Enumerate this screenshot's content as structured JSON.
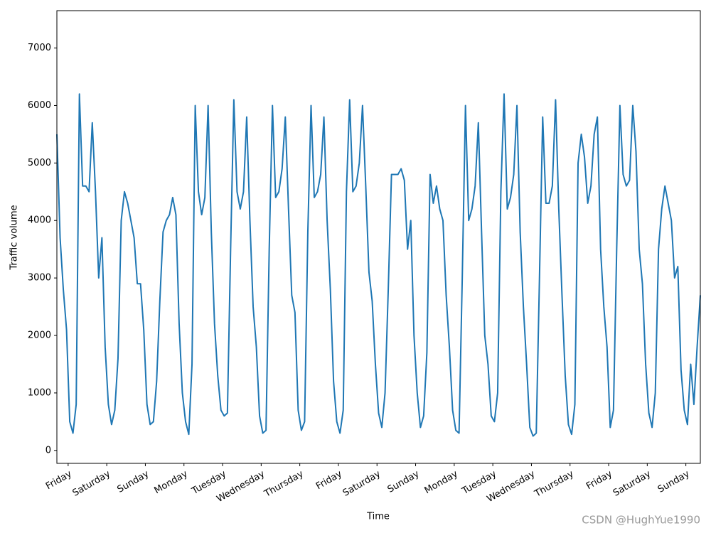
{
  "chart_data": {
    "type": "line",
    "xlabel": "Time",
    "ylabel": "Traffic volume",
    "watermark": "CSDN @HughYue1990",
    "color": "#1f77b4",
    "x": [
      0,
      2,
      4,
      6,
      8,
      10,
      12,
      14,
      16,
      18,
      20,
      22,
      24,
      26,
      28,
      30,
      32,
      34,
      36,
      38,
      40,
      42,
      44,
      46,
      48,
      50,
      52,
      54,
      56,
      58,
      60,
      62,
      64,
      66,
      68,
      70,
      72,
      74,
      76,
      78,
      80,
      82,
      84,
      86,
      88,
      90,
      92,
      94,
      96,
      98,
      100,
      102,
      104,
      106,
      108,
      110,
      112,
      114,
      116,
      118,
      120,
      122,
      124,
      126,
      128,
      130,
      132,
      134,
      136,
      138,
      140,
      142,
      144,
      146,
      148,
      150,
      152,
      154,
      156,
      158,
      160,
      162,
      164,
      166,
      168,
      170,
      172,
      174,
      176,
      178,
      180,
      182,
      184,
      186,
      188,
      190,
      192,
      194,
      196,
      198,
      200,
      202,
      204,
      206,
      208,
      210,
      212,
      214,
      216,
      218,
      220,
      222,
      224,
      226,
      228,
      230,
      232,
      234,
      236,
      238,
      240,
      242,
      244,
      246,
      248,
      250,
      252,
      254,
      256,
      258,
      260,
      262,
      264,
      266,
      268,
      270,
      272,
      274,
      276,
      278,
      280,
      282,
      284,
      286,
      288,
      290,
      292,
      294,
      296,
      298,
      300,
      302,
      304,
      306,
      308,
      310,
      312,
      314,
      316,
      318,
      320,
      322,
      324,
      326,
      328,
      330,
      332,
      334,
      336,
      338,
      340,
      342,
      344,
      346,
      348,
      350,
      352,
      354,
      356,
      358,
      360,
      362,
      364,
      366,
      368,
      370,
      372,
      374,
      376,
      378,
      380,
      382,
      384,
      386,
      388,
      390,
      392,
      394,
      396,
      398,
      400
    ],
    "values": [
      5500,
      3700,
      2800,
      2100,
      500,
      300,
      800,
      6200,
      4600,
      4600,
      4500,
      5700,
      4500,
      3000,
      3700,
      1800,
      800,
      450,
      700,
      1600,
      4000,
      4500,
      4300,
      4000,
      3700,
      2900,
      2900,
      2100,
      800,
      450,
      500,
      1200,
      2600,
      3800,
      4000,
      4100,
      4400,
      4100,
      2200,
      1000,
      500,
      280,
      1500,
      6000,
      4500,
      4100,
      4400,
      6000,
      3800,
      2200,
      1300,
      700,
      600,
      650,
      3500,
      6100,
      4500,
      4200,
      4500,
      5800,
      4000,
      2500,
      1800,
      600,
      300,
      350,
      3500,
      6000,
      4400,
      4500,
      4900,
      5800,
      4200,
      2700,
      2400,
      700,
      350,
      500,
      3800,
      6000,
      4400,
      4500,
      4800,
      5800,
      4000,
      2800,
      1200,
      500,
      300,
      700,
      4500,
      6100,
      4500,
      4600,
      5000,
      6000,
      4600,
      3100,
      2600,
      1500,
      650,
      400,
      1000,
      2800,
      4800,
      4800,
      4800,
      4900,
      4700,
      3500,
      4000,
      2000,
      1000,
      400,
      600,
      1700,
      4800,
      4300,
      4600,
      4200,
      4000,
      2700,
      1800,
      700,
      350,
      300,
      3000,
      6000,
      4000,
      4200,
      4600,
      5700,
      3800,
      2000,
      1500,
      600,
      500,
      1000,
      4500,
      6200,
      4200,
      4400,
      4800,
      6000,
      3800,
      2500,
      1500,
      400,
      250,
      300,
      3000,
      5800,
      4300,
      4300,
      4600,
      6100,
      4200,
      2700,
      1300,
      450,
      280,
      800,
      5000,
      5500,
      5100,
      4300,
      4600,
      5500,
      5800,
      3500,
      2500,
      1800,
      400,
      700,
      3500,
      6000,
      4800,
      4600,
      4700,
      6000,
      5200,
      3500,
      2900,
      1500,
      650,
      400,
      1000,
      3500,
      4200,
      4600,
      4300,
      4000,
      3000,
      3200,
      1400,
      700,
      450,
      1500,
      800,
      1800,
      2700
    ],
    "xlim": [
      0,
      400
    ],
    "xticks": [
      {
        "value": 7,
        "label": "Friday"
      },
      {
        "value": 31,
        "label": "Saturday"
      },
      {
        "value": 55,
        "label": "Sunday"
      },
      {
        "value": 79,
        "label": "Monday"
      },
      {
        "value": 103,
        "label": "Tuesday"
      },
      {
        "value": 127,
        "label": "Wednesday"
      },
      {
        "value": 151,
        "label": "Thursday"
      },
      {
        "value": 175,
        "label": "Friday"
      },
      {
        "value": 199,
        "label": "Saturday"
      },
      {
        "value": 223,
        "label": "Sunday"
      },
      {
        "value": 247,
        "label": "Monday"
      },
      {
        "value": 271,
        "label": "Tuesday"
      },
      {
        "value": 295,
        "label": "Wednesday"
      },
      {
        "value": 319,
        "label": "Thursday"
      },
      {
        "value": 343,
        "label": "Friday"
      },
      {
        "value": 367,
        "label": "Saturday"
      },
      {
        "value": 391,
        "label": "Sunday"
      }
    ],
    "ylim": [
      -225,
      7650
    ],
    "yticks": [
      0,
      1000,
      2000,
      3000,
      4000,
      5000,
      6000,
      7000
    ],
    "grid": false
  }
}
